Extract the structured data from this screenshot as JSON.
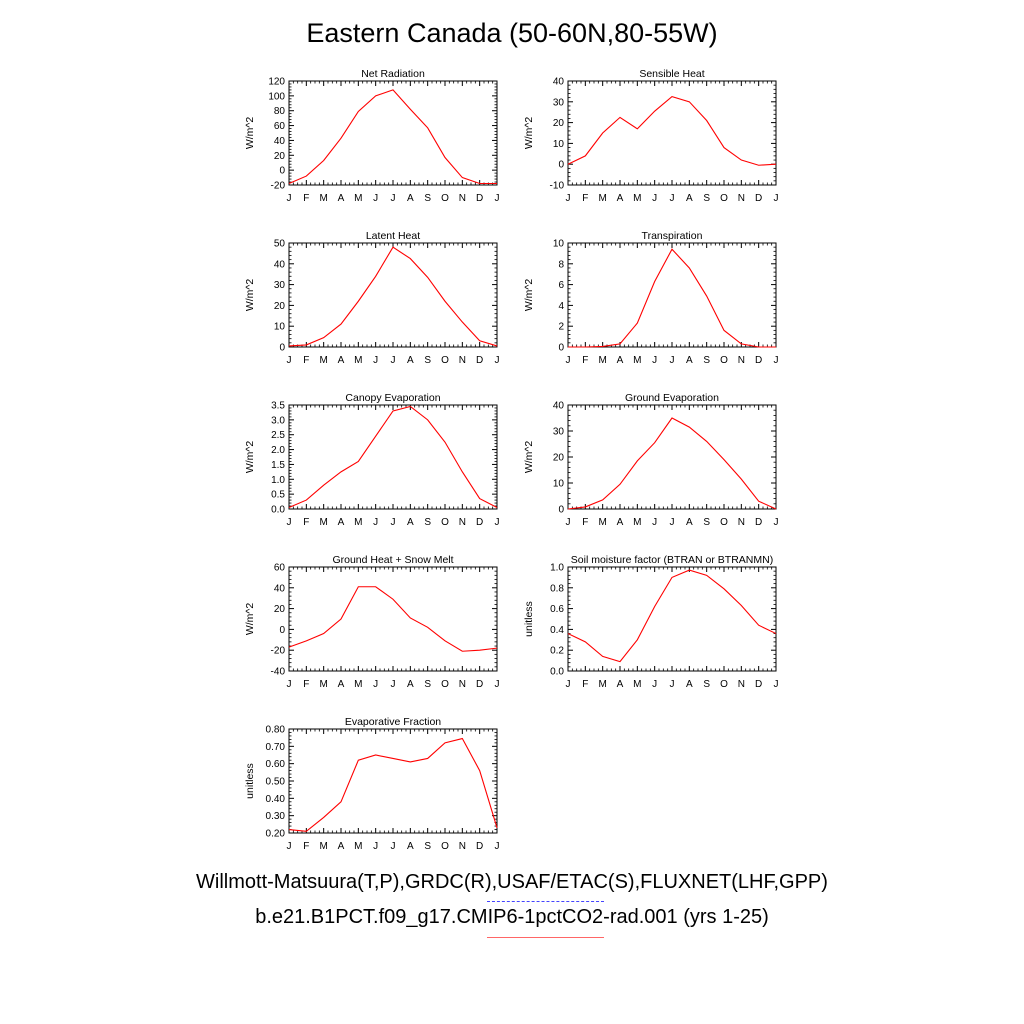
{
  "title": "Eastern Canada (50-60N,80-55W)",
  "legend": {
    "obs_label": "Willmott-Matsuura(T,P),GRDC(R),USAF/ETAC(S),FLUXNET(LHF,GPP)",
    "model_label": "b.e21.B1PCT.f09_g17.CMIP6-1pctCO2-rad.001 (yrs 1-25)",
    "obs_color": "#4444ff",
    "model_color": "#ff0000"
  },
  "chart_data": [
    {
      "type": "line",
      "title": "Net Radiation",
      "ylabel": "W/m^2",
      "categories": [
        "J",
        "F",
        "M",
        "A",
        "M",
        "J",
        "J",
        "A",
        "S",
        "O",
        "N",
        "D",
        "J"
      ],
      "ylim": [
        -20,
        120
      ],
      "yticks": [
        "-20",
        "0",
        "20",
        "40",
        "60",
        "80",
        "100",
        "120"
      ],
      "values": [
        -18,
        -8,
        13,
        43,
        79,
        100,
        108,
        82,
        57,
        17,
        -10,
        -18,
        -18
      ]
    },
    {
      "type": "line",
      "title": "Sensible Heat",
      "ylabel": "W/m^2",
      "categories": [
        "J",
        "F",
        "M",
        "A",
        "M",
        "J",
        "J",
        "A",
        "S",
        "O",
        "N",
        "D",
        "J"
      ],
      "ylim": [
        -10,
        40
      ],
      "yticks": [
        "-10",
        "0",
        "10",
        "20",
        "30",
        "40"
      ],
      "values": [
        0,
        4,
        15,
        22.5,
        17,
        25.5,
        32.5,
        30,
        21,
        8,
        2,
        -0.5,
        0
      ]
    },
    {
      "type": "line",
      "title": "Latent Heat",
      "ylabel": "W/m^2",
      "categories": [
        "J",
        "F",
        "M",
        "A",
        "M",
        "J",
        "J",
        "A",
        "S",
        "O",
        "N",
        "D",
        "J"
      ],
      "ylim": [
        0,
        50
      ],
      "yticks": [
        "0",
        "10",
        "20",
        "30",
        "40",
        "50"
      ],
      "values": [
        0.5,
        1,
        4.5,
        11,
        22,
        34,
        48,
        42.5,
        33.5,
        22,
        12,
        3,
        0.5
      ]
    },
    {
      "type": "line",
      "title": "Transpiration",
      "ylabel": "W/m^2",
      "categories": [
        "J",
        "F",
        "M",
        "A",
        "M",
        "J",
        "J",
        "A",
        "S",
        "O",
        "N",
        "D",
        "J"
      ],
      "ylim": [
        0,
        10
      ],
      "yticks": [
        "0",
        "2",
        "4",
        "6",
        "8",
        "10"
      ],
      "values": [
        0,
        0,
        0.05,
        0.3,
        2.3,
        6.3,
        9.4,
        7.6,
        4.9,
        1.6,
        0.3,
        0,
        0
      ]
    },
    {
      "type": "line",
      "title": "Canopy Evaporation",
      "ylabel": "W/m^2",
      "categories": [
        "J",
        "F",
        "M",
        "A",
        "M",
        "J",
        "J",
        "A",
        "S",
        "O",
        "N",
        "D",
        "J"
      ],
      "ylim": [
        0,
        3.5
      ],
      "yticks": [
        "0.0",
        "0.5",
        "1.0",
        "1.5",
        "2.0",
        "2.5",
        "3.0",
        "3.5"
      ],
      "values": [
        0.05,
        0.3,
        0.8,
        1.25,
        1.6,
        2.45,
        3.3,
        3.45,
        3.0,
        2.25,
        1.25,
        0.35,
        0.05
      ]
    },
    {
      "type": "line",
      "title": "Ground Evaporation",
      "ylabel": "W/m^2",
      "categories": [
        "J",
        "F",
        "M",
        "A",
        "M",
        "J",
        "J",
        "A",
        "S",
        "O",
        "N",
        "D",
        "J"
      ],
      "ylim": [
        0,
        40
      ],
      "yticks": [
        "0",
        "10",
        "20",
        "30",
        "40"
      ],
      "values": [
        0,
        0.8,
        3.5,
        9.5,
        18.5,
        25.5,
        35,
        31.5,
        26,
        19,
        11.5,
        3,
        0
      ]
    },
    {
      "type": "line",
      "title": "Ground Heat + Snow Melt",
      "ylabel": "W/m^2",
      "categories": [
        "J",
        "F",
        "M",
        "A",
        "M",
        "J",
        "J",
        "A",
        "S",
        "O",
        "N",
        "D",
        "J"
      ],
      "ylim": [
        -40,
        60
      ],
      "yticks": [
        "-40",
        "-20",
        "0",
        "20",
        "40",
        "60"
      ],
      "values": [
        -17,
        -11,
        -4,
        10,
        41,
        41,
        29,
        11,
        2,
        -11,
        -21,
        -20,
        -18
      ]
    },
    {
      "type": "line",
      "title": "Soil moisture factor (BTRAN or BTRANMN)",
      "ylabel": "unitless",
      "categories": [
        "J",
        "F",
        "M",
        "A",
        "M",
        "J",
        "J",
        "A",
        "S",
        "O",
        "N",
        "D",
        "J"
      ],
      "ylim": [
        0,
        1.0
      ],
      "yticks": [
        "0.0",
        "0.2",
        "0.4",
        "0.6",
        "0.8",
        "1.0"
      ],
      "values": [
        0.36,
        0.28,
        0.14,
        0.09,
        0.3,
        0.62,
        0.9,
        0.97,
        0.92,
        0.79,
        0.63,
        0.44,
        0.36
      ]
    },
    {
      "type": "line",
      "title": "Evaporative Fraction",
      "ylabel": "unitless",
      "categories": [
        "J",
        "F",
        "M",
        "A",
        "M",
        "J",
        "J",
        "A",
        "S",
        "O",
        "N",
        "D",
        "J"
      ],
      "ylim": [
        0.2,
        0.8
      ],
      "yticks": [
        "0.20",
        "0.30",
        "0.40",
        "0.50",
        "0.60",
        "0.70",
        "0.80"
      ],
      "values": [
        0.22,
        0.21,
        0.29,
        0.38,
        0.62,
        0.65,
        0.63,
        0.61,
        0.63,
        0.72,
        0.745,
        0.56,
        0.23
      ]
    }
  ]
}
